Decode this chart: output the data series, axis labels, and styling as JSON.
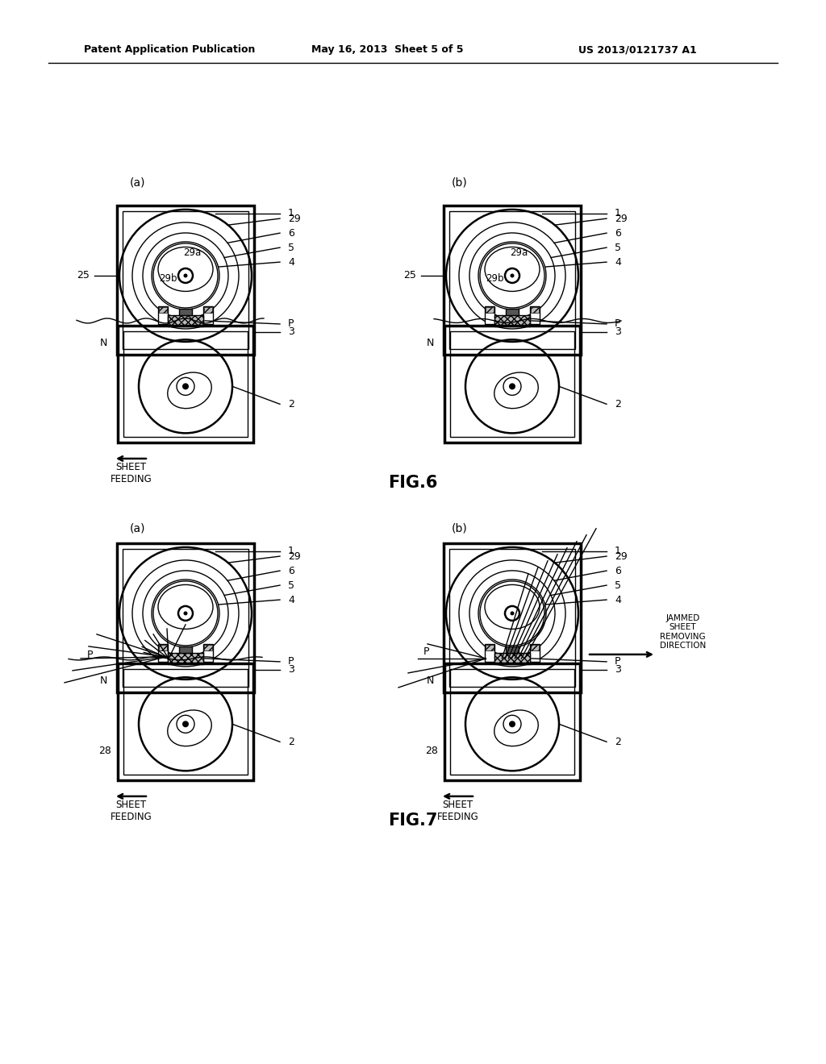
{
  "header_left": "Patent Application Publication",
  "header_mid": "May 16, 2013  Sheet 5 of 5",
  "header_right": "US 2013/0121737 A1",
  "fig6_label": "FIG.6",
  "fig7_label": "FIG.7",
  "bg_color": "#ffffff",
  "line_color": "#000000"
}
